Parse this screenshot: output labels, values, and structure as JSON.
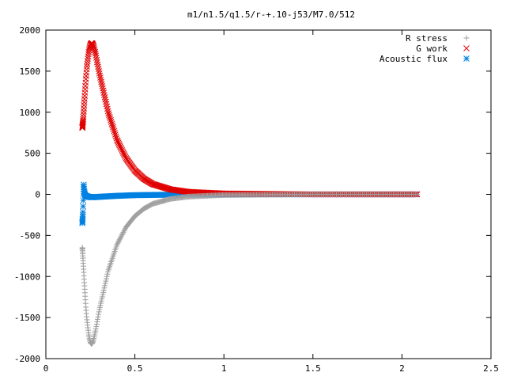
{
  "chart_data": {
    "type": "scatter",
    "title": "m1/n1.5/q1.5/r-+.10-j53/M7.0/512",
    "xlabel": "",
    "ylabel": "",
    "xlim": [
      0,
      2.5
    ],
    "ylim": [
      -2000,
      2000
    ],
    "x_ticks": [
      "0",
      "0.5",
      "1",
      "1.5",
      "2",
      "2.5"
    ],
    "y_ticks": [
      "2000",
      "1500",
      "1000",
      "500",
      "0",
      "-500",
      "-1000",
      "-1500",
      "-2000"
    ],
    "grid": false,
    "legend_position": "top-right",
    "x_start": 0.205,
    "x_end": 2.085,
    "series": [
      {
        "name": "R stress",
        "marker": "plus",
        "color": "#a0a0a0",
        "points": [
          [
            0.205,
            -650
          ],
          [
            0.21,
            -850
          ],
          [
            0.215,
            -1050
          ],
          [
            0.22,
            -1220
          ],
          [
            0.225,
            -1380
          ],
          [
            0.23,
            -1510
          ],
          [
            0.235,
            -1610
          ],
          [
            0.24,
            -1700
          ],
          [
            0.245,
            -1760
          ],
          [
            0.25,
            -1800
          ],
          [
            0.255,
            -1820
          ],
          [
            0.26,
            -1815
          ],
          [
            0.265,
            -1790
          ],
          [
            0.27,
            -1750
          ],
          [
            0.28,
            -1650
          ],
          [
            0.3,
            -1410
          ],
          [
            0.35,
            -930
          ],
          [
            0.4,
            -610
          ],
          [
            0.45,
            -400
          ],
          [
            0.5,
            -265
          ],
          [
            0.55,
            -175
          ],
          [
            0.6,
            -115
          ],
          [
            0.7,
            -55
          ],
          [
            0.8,
            -28
          ],
          [
            1.0,
            -8
          ],
          [
            1.5,
            0
          ],
          [
            2.085,
            0
          ]
        ]
      },
      {
        "name": "G work",
        "marker": "x",
        "color": "#e00000",
        "points": [
          [
            0.205,
            810
          ],
          [
            0.21,
            920
          ],
          [
            0.215,
            1100
          ],
          [
            0.22,
            1260
          ],
          [
            0.225,
            1410
          ],
          [
            0.23,
            1540
          ],
          [
            0.235,
            1640
          ],
          [
            0.24,
            1720
          ],
          [
            0.245,
            1780
          ],
          [
            0.25,
            1820
          ],
          [
            0.255,
            1840
          ],
          [
            0.26,
            1840
          ],
          [
            0.265,
            1820
          ],
          [
            0.27,
            1790
          ],
          [
            0.28,
            1700
          ],
          [
            0.3,
            1480
          ],
          [
            0.35,
            1000
          ],
          [
            0.4,
            660
          ],
          [
            0.45,
            440
          ],
          [
            0.5,
            290
          ],
          [
            0.55,
            190
          ],
          [
            0.6,
            125
          ],
          [
            0.7,
            60
          ],
          [
            0.8,
            30
          ],
          [
            1.0,
            10
          ],
          [
            1.5,
            0
          ],
          [
            2.085,
            0
          ]
        ]
      },
      {
        "name": "Acoustic flux",
        "marker": "star",
        "color": "#0080e0",
        "points": [
          [
            0.205,
            -350
          ],
          [
            0.208,
            -230
          ],
          [
            0.212,
            130
          ],
          [
            0.216,
            35
          ],
          [
            0.22,
            -10
          ],
          [
            0.225,
            -20
          ],
          [
            0.24,
            -30
          ],
          [
            0.26,
            -35
          ],
          [
            0.3,
            -30
          ],
          [
            0.4,
            -18
          ],
          [
            0.5,
            -10
          ],
          [
            0.7,
            -4
          ],
          [
            1.0,
            0
          ],
          [
            2.085,
            0
          ]
        ]
      }
    ]
  }
}
